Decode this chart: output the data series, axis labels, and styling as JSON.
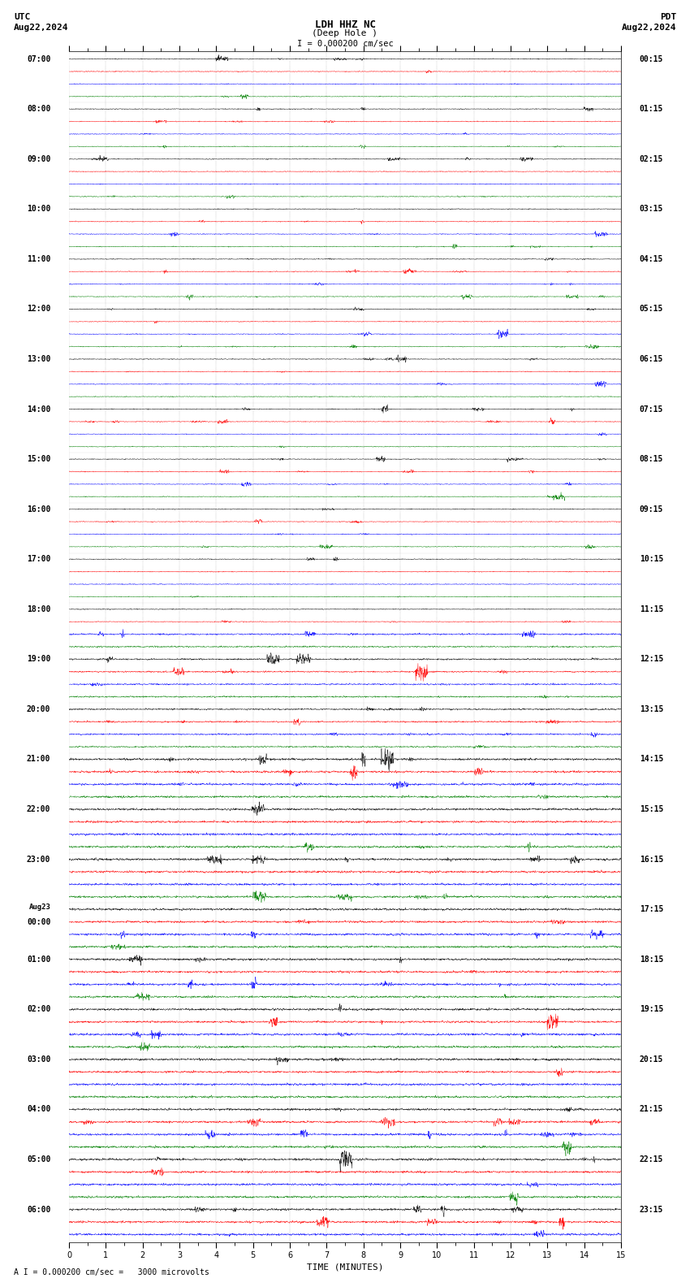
{
  "title_line1": "LDH HHZ NC",
  "title_line2": "(Deep Hole )",
  "scale_label": "I = 0.000200 cm/sec",
  "bottom_label": "A I = 0.000200 cm/sec =   3000 microvolts",
  "utc_label": "UTC",
  "pdt_label": "PDT",
  "date_left": "Aug22,2024",
  "date_right": "Aug22,2024",
  "xlabel": "TIME (MINUTES)",
  "xlim": [
    0,
    15
  ],
  "xticks": [
    0,
    1,
    2,
    3,
    4,
    5,
    6,
    7,
    8,
    9,
    10,
    11,
    12,
    13,
    14,
    15
  ],
  "background_color": "#ffffff",
  "line_colors": [
    "black",
    "red",
    "blue",
    "green"
  ],
  "utc_times_left": [
    "07:00",
    "",
    "",
    "",
    "08:00",
    "",
    "",
    "",
    "09:00",
    "",
    "",
    "",
    "10:00",
    "",
    "",
    "",
    "11:00",
    "",
    "",
    "",
    "12:00",
    "",
    "",
    "",
    "13:00",
    "",
    "",
    "",
    "14:00",
    "",
    "",
    "",
    "15:00",
    "",
    "",
    "",
    "16:00",
    "",
    "",
    "",
    "17:00",
    "",
    "",
    "",
    "18:00",
    "",
    "",
    "",
    "19:00",
    "",
    "",
    "",
    "20:00",
    "",
    "",
    "",
    "21:00",
    "",
    "",
    "",
    "22:00",
    "",
    "",
    "",
    "23:00",
    "",
    "",
    "",
    "Aug23",
    "00:00",
    "",
    "",
    "01:00",
    "",
    "",
    "",
    "02:00",
    "",
    "",
    "",
    "03:00",
    "",
    "",
    "",
    "04:00",
    "",
    "",
    "",
    "05:00",
    "",
    "",
    "",
    "06:00",
    "",
    ""
  ],
  "pdt_times_right": [
    "00:15",
    "",
    "",
    "",
    "01:15",
    "",
    "",
    "",
    "02:15",
    "",
    "",
    "",
    "03:15",
    "",
    "",
    "",
    "04:15",
    "",
    "",
    "",
    "05:15",
    "",
    "",
    "",
    "06:15",
    "",
    "",
    "",
    "07:15",
    "",
    "",
    "",
    "08:15",
    "",
    "",
    "",
    "09:15",
    "",
    "",
    "",
    "10:15",
    "",
    "",
    "",
    "11:15",
    "",
    "",
    "",
    "12:15",
    "",
    "",
    "",
    "13:15",
    "",
    "",
    "",
    "14:15",
    "",
    "",
    "",
    "15:15",
    "",
    "",
    "",
    "16:15",
    "",
    "",
    "",
    "17:15",
    "",
    "",
    "",
    "18:15",
    "",
    "",
    "",
    "19:15",
    "",
    "",
    "",
    "20:15",
    "",
    "",
    "",
    "21:15",
    "",
    "",
    "",
    "22:15",
    "",
    "",
    "",
    "23:15",
    "",
    ""
  ],
  "num_rows": 95,
  "minutes_per_row": 15,
  "seed": 42
}
